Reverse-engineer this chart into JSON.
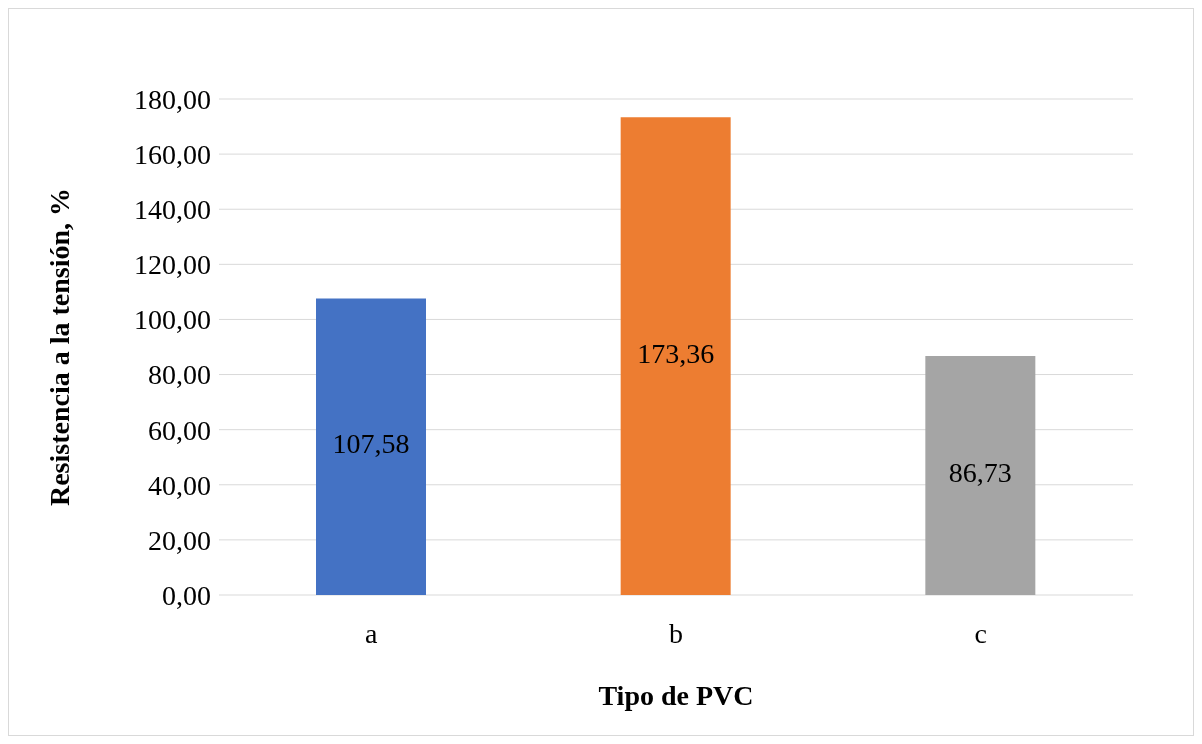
{
  "chart_data": {
    "type": "bar",
    "xlabel": "Tipo de PVC",
    "ylabel": "Resistencia a la tensión, %",
    "categories": [
      "a",
      "b",
      "c"
    ],
    "values": [
      107.58,
      173.36,
      86.73
    ],
    "colors": [
      "#4472c4",
      "#ed7d31",
      "#a5a5a5"
    ],
    "value_labels": [
      "107,58",
      "173,36",
      "86,73"
    ],
    "ylim": [
      0,
      180
    ],
    "yticks": [
      {
        "value": 0,
        "label": "0,00"
      },
      {
        "value": 20,
        "label": "20,00"
      },
      {
        "value": 40,
        "label": "40,00"
      },
      {
        "value": 60,
        "label": "60,00"
      },
      {
        "value": 80,
        "label": "80,00"
      },
      {
        "value": 100,
        "label": "100,00"
      },
      {
        "value": 120,
        "label": "120,00"
      },
      {
        "value": 140,
        "label": "140,00"
      },
      {
        "value": 160,
        "label": "160,00"
      },
      {
        "value": 180,
        "label": "180,00"
      }
    ],
    "grid": "y",
    "legend": false
  }
}
